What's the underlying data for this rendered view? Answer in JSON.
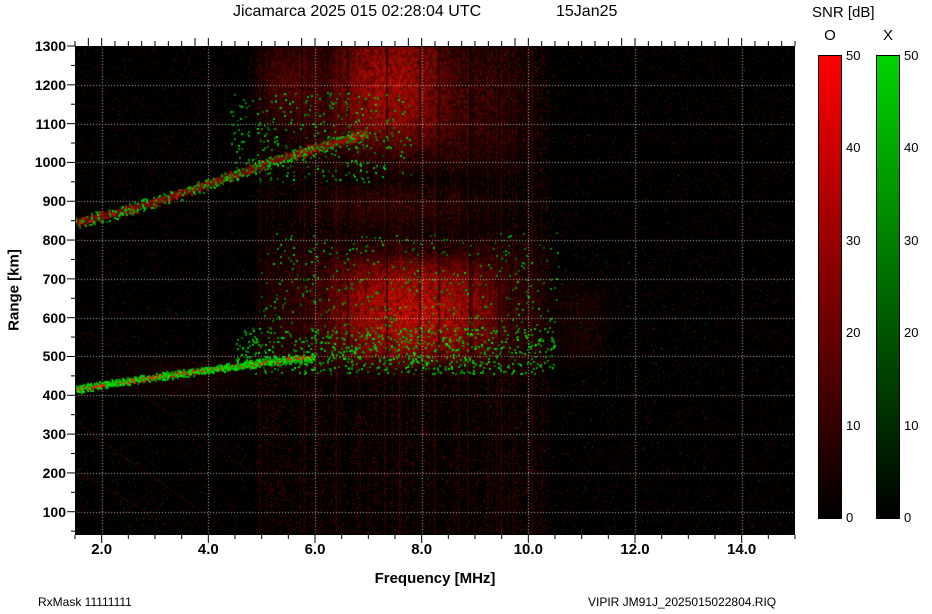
{
  "header": {
    "title": "Jicamarca 2025 015 02:28:04 UTC",
    "date": "15Jan25"
  },
  "axes": {
    "x": {
      "title": "Frequency [MHz]"
    },
    "y": {
      "title": "Range [km]"
    }
  },
  "colorbar": {
    "title": "SNR [dB]",
    "tick_labels": [
      "0",
      "10",
      "20",
      "30",
      "40",
      "50"
    ],
    "bars": [
      {
        "label": "O",
        "top_color": "#ff0000"
      },
      {
        "label": "X",
        "top_color": "#00d400"
      }
    ]
  },
  "footer": {
    "left": "RxMask 11111111",
    "right": "VIPIR  JM91J_2025015022804.RIQ"
  },
  "chart_data": {
    "type": "heatmap",
    "title": "Jicamarca 2025 015 02:28:04 UTC",
    "xlabel": "Frequency [MHz]",
    "ylabel": "Range [km]",
    "xlim": [
      1.5,
      15.0
    ],
    "ylim": [
      40,
      1300
    ],
    "x_major_ticks": [
      2,
      4,
      6,
      8,
      10,
      12,
      14
    ],
    "x_tick_labels": [
      "2.0",
      "4.0",
      "6.0",
      "8.0",
      "10.0",
      "12.0",
      "14.0"
    ],
    "y_major_ticks": [
      100,
      200,
      300,
      400,
      500,
      600,
      700,
      800,
      900,
      1000,
      1100,
      1200,
      1300
    ],
    "snr_scale": {
      "min": 0,
      "max": 50,
      "units": "dB",
      "o_mode_color": "#ff0000",
      "x_mode_color": "#00d400"
    },
    "grid": {
      "style": "dotted",
      "color": "#ffffff"
    },
    "features": {
      "f_layer_trace": {
        "desc": "F-region echo trace, mixed O (red) and X (green) modes",
        "stroke": "rgba(255,40,0,0.95)",
        "width": 3.5,
        "points_mhz_km": [
          [
            1.5,
            415
          ],
          [
            2.0,
            426
          ],
          [
            2.5,
            436
          ],
          [
            3.0,
            446
          ],
          [
            3.5,
            456
          ],
          [
            4.0,
            466
          ],
          [
            4.5,
            475
          ],
          [
            5.0,
            484
          ],
          [
            5.5,
            492
          ],
          [
            6.0,
            498
          ]
        ]
      },
      "second_hop_trace": {
        "desc": "higher-order spread echo trace",
        "stroke": "rgba(190,25,0,0.5)",
        "width": 7,
        "points_mhz_km": [
          [
            1.5,
            845
          ],
          [
            2.0,
            860
          ],
          [
            2.5,
            878
          ],
          [
            3.0,
            898
          ],
          [
            3.5,
            920
          ],
          [
            4.0,
            944
          ],
          [
            4.5,
            968
          ],
          [
            5.0,
            992
          ],
          [
            5.5,
            1015
          ],
          [
            6.0,
            1036
          ],
          [
            6.5,
            1056
          ],
          [
            7.0,
            1075
          ]
        ]
      },
      "spread_regions": [
        {
          "f": [
            4.7,
            10.7
          ],
          "r": [
            430,
            840
          ],
          "peak": 0.5,
          "color": [
            190,
            10,
            0
          ]
        },
        {
          "f": [
            6.1,
            9.6
          ],
          "r": [
            470,
            770
          ],
          "peak": 0.85,
          "color": [
            235,
            20,
            0
          ]
        },
        {
          "f": [
            5.0,
            10.3
          ],
          "r": [
            950,
            1380
          ],
          "peak": 0.45,
          "color": [
            180,
            10,
            0
          ]
        },
        {
          "f": [
            6.2,
            8.6
          ],
          "r": [
            1020,
            1400
          ],
          "peak": 0.7,
          "color": [
            220,
            15,
            0
          ]
        },
        {
          "f": [
            5.4,
            9.6
          ],
          "r": [
            820,
            960
          ],
          "peak": 0.3,
          "color": [
            150,
            10,
            0
          ]
        },
        {
          "f": [
            10.3,
            11.6
          ],
          "r": [
            460,
            720
          ],
          "peak": 0.22,
          "color": [
            140,
            10,
            0
          ]
        },
        {
          "f": [
            2.0,
            5.2
          ],
          "r": [
            380,
            520
          ],
          "peak": 0.16,
          "color": [
            150,
            10,
            0
          ]
        },
        {
          "f": [
            4.7,
            6.2
          ],
          "r": [
            1080,
            1340
          ],
          "peak": 0.35,
          "color": [
            180,
            10,
            0
          ]
        }
      ],
      "speckle_clusters": [
        {
          "f": [
            4.5,
            10.5
          ],
          "r": [
            455,
            575
          ],
          "count": 750,
          "size": 2,
          "g": [
            150,
            255
          ]
        },
        {
          "f": [
            5.0,
            10.6
          ],
          "r": [
            575,
            820
          ],
          "count": 330,
          "size": 2,
          "g": [
            120,
            230
          ]
        },
        {
          "f": [
            4.4,
            7.8
          ],
          "r": [
            950,
            1180
          ],
          "count": 330,
          "size": 2,
          "g": [
            130,
            240
          ]
        },
        {
          "f": [
            1.5,
            15.0
          ],
          "r": [
            40,
            1300
          ],
          "count": 700,
          "size": 1,
          "g": [
            40,
            130
          ]
        },
        {
          "f": [
            10.5,
            13.8
          ],
          "r": [
            430,
            780
          ],
          "count": 90,
          "size": 1,
          "g": [
            60,
            160
          ]
        },
        {
          "f": [
            8.0,
            10.5
          ],
          "r": [
            1150,
            1290
          ],
          "count": 60,
          "size": 1,
          "g": [
            60,
            150
          ]
        },
        {
          "f": [
            1.5,
            3.2
          ],
          "r": [
            60,
            260
          ],
          "count": 70,
          "size": 1,
          "g": [
            50,
            140
          ]
        }
      ],
      "trace_speckles": [
        {
          "trace": "f_layer_trace",
          "count": 500,
          "jitter_km": 5,
          "size": 2,
          "channel": "r",
          "v": [
            200,
            255
          ]
        },
        {
          "trace": "f_layer_trace",
          "count": 550,
          "jitter_km": 10,
          "size": 2,
          "channel": "g",
          "v": [
            150,
            255
          ]
        },
        {
          "trace": "second_hop_trace",
          "count": 250,
          "jitter_km": 14,
          "size": 2,
          "channel": "r",
          "v": [
            140,
            220
          ]
        },
        {
          "trace": "second_hop_trace",
          "count": 300,
          "jitter_km": 16,
          "size": 2,
          "channel": "g",
          "v": [
            120,
            240
          ]
        }
      ],
      "interference_lines": [
        {
          "from": [
            1.5,
            330
          ],
          "to": [
            4.2,
            70
          ],
          "alpha": 0.12
        },
        {
          "from": [
            1.5,
            210
          ],
          "to": [
            3.3,
            60
          ],
          "alpha": 0.1
        },
        {
          "from": [
            2.3,
            450
          ],
          "to": [
            5.6,
            120
          ],
          "alpha": 0.1
        }
      ],
      "rfi_notches": {
        "freqs": [
          4.85,
          5.75,
          6.6,
          7.35,
          7.95,
          8.9,
          9.45,
          10.1
        ],
        "random_count": 10,
        "band": [
          4.6,
          10.6
        ]
      },
      "noise": {
        "red_count": 22000,
        "red_v": [
          15,
          80
        ],
        "green_count": 5000,
        "green_v": [
          12,
          60
        ],
        "band": {
          "f": [
            4.9,
            10.4
          ],
          "count": 15000,
          "v": [
            25,
            110
          ]
        },
        "stripes": {
          "f": [
            4.9,
            10.4
          ],
          "count": 70,
          "alpha": [
            0.04,
            0.16
          ]
        }
      }
    }
  }
}
